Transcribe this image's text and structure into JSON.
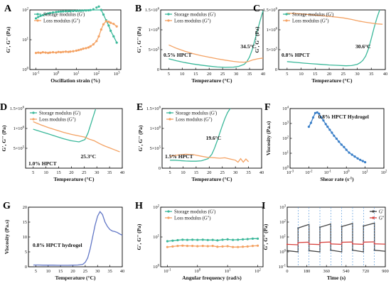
{
  "chart_data": [
    {
      "panel": "A",
      "type": "line",
      "log_x": true,
      "log_y": true,
      "xlim": [
        0.05,
        1600
      ],
      "ylim": [
        1,
        100
      ],
      "x_ticks": [
        "10-1",
        "100",
        "101",
        "102",
        "103"
      ],
      "y_ticks": [
        "100",
        "101",
        "102"
      ],
      "xlabel": "Oscillation strain (%)",
      "ylabel": "G', G'' (Pa)",
      "legend": [
        "Storage modulus (G')",
        "Loss modulus (G'')"
      ],
      "series": [
        {
          "name": "Storage modulus (G')",
          "color": "#3bb89a",
          "x": [
            0.1,
            0.13,
            0.17,
            0.22,
            0.3,
            0.4,
            0.5,
            0.7,
            1,
            1.3,
            1.7,
            2.2,
            3,
            4,
            5,
            7,
            10,
            13,
            17,
            22,
            30,
            40,
            50,
            70,
            100,
            130,
            170,
            220,
            300,
            400,
            500,
            700,
            1000
          ],
          "y": [
            52,
            58,
            63,
            67,
            72,
            76,
            79,
            82,
            85,
            87,
            88,
            89,
            90,
            91,
            91,
            92,
            93,
            94,
            94,
            95,
            96,
            97,
            99,
            105,
            120,
            130,
            100,
            70,
            45,
            30,
            20,
            13,
            8
          ]
        },
        {
          "name": "Loss modulus (G'')",
          "color": "#f4a263",
          "x": [
            0.1,
            0.13,
            0.17,
            0.22,
            0.3,
            0.4,
            0.5,
            0.7,
            1,
            1.3,
            1.7,
            2.2,
            3,
            4,
            5,
            7,
            10,
            13,
            17,
            22,
            30,
            40,
            50,
            70,
            100,
            130,
            170,
            220,
            300,
            400,
            500,
            700,
            1000
          ],
          "y": [
            3.6,
            3.7,
            3.6,
            3.8,
            3.7,
            3.6,
            3.7,
            3.8,
            3.7,
            3.9,
            3.8,
            3.9,
            4,
            3.9,
            4,
            4.1,
            4.3,
            4.5,
            4.7,
            5,
            5.2,
            5.5,
            6,
            7,
            9,
            13,
            22,
            33,
            42,
            40,
            37,
            34,
            28
          ]
        }
      ]
    },
    {
      "panel": "B",
      "type": "line",
      "xlim": [
        2,
        40
      ],
      "ylim": [
        0,
        1500000
      ],
      "x_ticks": [
        "5",
        "10",
        "15",
        "20",
        "25",
        "30",
        "35",
        "40"
      ],
      "y_ticks": [
        "0",
        "5×105",
        "1×106",
        "1.5×106"
      ],
      "xlabel": "Temperature (°C)",
      "ylabel": "G', G'' (Pa)",
      "legend": [
        "Storage modulus (G')",
        "Loss modulus (G'')"
      ],
      "annotations": [
        "0.5% HPCT",
        "34.5°C"
      ],
      "series": [
        {
          "name": "Storage modulus (G')",
          "color": "#3bb89a",
          "x": [
            5,
            8,
            11,
            14,
            17,
            20,
            23,
            26,
            29,
            31,
            33,
            34,
            35,
            36,
            37,
            38,
            39,
            40
          ],
          "y": [
            270000,
            220000,
            175000,
            140000,
            110000,
            85000,
            65000,
            55000,
            60000,
            80000,
            130000,
            200000,
            320000,
            500000,
            750000,
            1000000,
            1250000,
            1480000
          ]
        },
        {
          "name": "Loss modulus (G'')",
          "color": "#f4a263",
          "x": [
            5,
            8,
            11,
            14,
            17,
            20,
            23,
            26,
            29,
            31,
            33,
            34.5,
            36,
            38,
            40
          ],
          "y": [
            620000,
            530000,
            460000,
            400000,
            350000,
            310000,
            270000,
            235000,
            205000,
            190000,
            185000,
            200000,
            240000,
            270000,
            290000
          ]
        }
      ]
    },
    {
      "panel": "C",
      "type": "line",
      "xlim": [
        2,
        40
      ],
      "ylim": [
        0,
        1500000
      ],
      "x_ticks": [
        "5",
        "10",
        "15",
        "20",
        "25",
        "30",
        "35",
        "40"
      ],
      "y_ticks": [
        "0",
        "5×105",
        "1×106",
        "1.5×106"
      ],
      "xlabel": "Temperature (°C)",
      "ylabel": "G', G'' (Pa)",
      "legend": [
        "Storage modulus (G')",
        "Loss modulus (G'')"
      ],
      "annotations": [
        "0.8% HPCT",
        "30.6°C"
      ],
      "series": [
        {
          "name": "Storage modulus (G')",
          "color": "#3bb89a",
          "x": [
            5,
            8,
            11,
            14,
            17,
            20,
            23,
            26,
            28,
            30,
            31,
            32,
            33,
            34,
            35,
            36,
            37,
            38
          ],
          "y": [
            200000,
            180000,
            160000,
            145000,
            130000,
            115000,
            105000,
            95000,
            100000,
            130000,
            170000,
            230000,
            340000,
            520000,
            780000,
            1050000,
            1300000,
            1500000
          ]
        },
        {
          "name": "Loss modulus (G'')",
          "color": "#f4a263",
          "x": [
            5,
            10,
            15,
            20,
            25,
            28,
            30.6,
            33,
            35,
            37,
            39
          ],
          "y": [
            1420000,
            1400000,
            1370000,
            1340000,
            1300000,
            1260000,
            1220000,
            1190000,
            1170000,
            1150000,
            1140000
          ]
        }
      ]
    },
    {
      "panel": "D",
      "type": "line",
      "xlim": [
        2,
        40
      ],
      "ylim": [
        0,
        1500000
      ],
      "x_ticks": [
        "5",
        "10",
        "15",
        "20",
        "25",
        "30",
        "35",
        "40"
      ],
      "y_ticks": [
        "5×105",
        "1×106",
        "1.5×106"
      ],
      "xlabel": "Temperature (°C)",
      "ylabel": "G', G'' (Pa)",
      "legend": [
        "Storage modulus (G')",
        "Loss modulus (G'')"
      ],
      "annotations": [
        "1.0% HPCT",
        "25.3°C"
      ],
      "series": [
        {
          "name": "Storage modulus (G')",
          "color": "#3bb89a",
          "x": [
            5,
            8,
            11,
            14,
            17,
            20,
            23,
            25.3,
            26.5,
            27.5,
            28.5,
            29.5
          ],
          "y": [
            980000,
            920000,
            860000,
            800000,
            740000,
            690000,
            660000,
            720000,
            880000,
            1080000,
            1280000,
            1480000
          ]
        },
        {
          "name": "Loss modulus (G'')",
          "color": "#f4a263",
          "x": [
            5,
            8,
            11,
            14,
            17,
            20,
            23,
            25.3,
            27,
            29,
            31,
            33,
            35,
            37,
            39
          ],
          "y": [
            1170000,
            1090000,
            1020000,
            960000,
            900000,
            850000,
            810000,
            780000,
            730000,
            690000,
            620000,
            560000,
            510000,
            460000,
            410000
          ]
        }
      ]
    },
    {
      "panel": "E",
      "type": "line",
      "xlim": [
        2,
        40
      ],
      "ylim": [
        0,
        1500000
      ],
      "x_ticks": [
        "5",
        "10",
        "15",
        "20",
        "25",
        "30",
        "35",
        "40"
      ],
      "y_ticks": [
        "0",
        "5×105",
        "1×106",
        "1.5×106"
      ],
      "xlabel": "Temperature (°C)",
      "ylabel": "G', G'' (Pa)",
      "legend": [
        "Storage modulus (G')",
        "Loss modulus (G'')"
      ],
      "annotations": [
        "1.5% HPCT",
        "19.6°C"
      ],
      "series": [
        {
          "name": "Storage modulus (G')",
          "color": "#3bb89a",
          "x": [
            5,
            7,
            9,
            11,
            13,
            15,
            17,
            19.6,
            21,
            22,
            23,
            24,
            25,
            26,
            27,
            28
          ],
          "y": [
            200000,
            200000,
            190000,
            180000,
            175000,
            175000,
            185000,
            240000,
            350000,
            500000,
            680000,
            880000,
            1070000,
            1250000,
            1400000,
            1500000
          ]
        },
        {
          "name": "Loss modulus (G'')",
          "color": "#f4a263",
          "x": [
            5,
            8,
            11,
            14,
            17,
            19.6,
            22,
            24,
            26,
            28,
            30,
            31,
            32,
            33,
            34,
            35
          ],
          "y": [
            300000,
            330000,
            350000,
            340000,
            300000,
            270000,
            260000,
            250000,
            260000,
            230000,
            200000,
            150000,
            240000,
            150000,
            230000,
            160000
          ]
        }
      ]
    },
    {
      "panel": "F",
      "type": "line",
      "log_x": true,
      "log_y": true,
      "xlim": [
        0.001,
        100
      ],
      "ylim": [
        1,
        10000
      ],
      "x_ticks": [
        "10-3",
        "10-2",
        "10-1",
        "100",
        "101",
        "102"
      ],
      "y_ticks": [
        "100",
        "101",
        "102",
        "103",
        "104"
      ],
      "xlabel": "Shear rate (s-1)",
      "ylabel": "Viscosity (Pa.s)",
      "annotations": [
        "0.8% HPCT Hydrogel"
      ],
      "series": [
        {
          "name": "",
          "color": "#3a7fc8",
          "x": [
            0.01,
            0.013,
            0.017,
            0.022,
            0.028,
            0.035,
            0.045,
            0.06,
            0.08,
            0.1,
            0.13,
            0.17,
            0.22,
            0.3,
            0.4,
            0.55,
            0.75,
            1,
            1.4,
            2,
            2.8,
            4,
            5.5,
            7.5,
            10
          ],
          "y": [
            600,
            1100,
            2500,
            5000,
            5500,
            4500,
            2600,
            1600,
            900,
            600,
            380,
            240,
            150,
            95,
            60,
            38,
            26,
            17,
            11,
            8,
            6,
            4.5,
            3.6,
            3,
            2.5
          ]
        }
      ]
    },
    {
      "panel": "G",
      "type": "line",
      "xlim": [
        2,
        40
      ],
      "ylim": [
        0,
        20
      ],
      "x_ticks": [
        "5",
        "10",
        "15",
        "20",
        "25",
        "30",
        "35",
        "40"
      ],
      "y_ticks": [
        "0",
        "5",
        "10",
        "15",
        "20"
      ],
      "xlabel": "Temperature (°C)",
      "ylabel": "Viscosity (Pa.s)",
      "annotations": [
        "0.8% HPCT hydrogel"
      ],
      "series": [
        {
          "name": "",
          "color": "#6277c6",
          "x": [
            4,
            6,
            8,
            10,
            12,
            14,
            16,
            18,
            20,
            22,
            24,
            25,
            26,
            27,
            28,
            29,
            30,
            31,
            32,
            33,
            34,
            35,
            36,
            37,
            38,
            39,
            40
          ],
          "y": [
            0.6,
            0.6,
            0.55,
            0.55,
            0.55,
            0.5,
            0.5,
            0.5,
            0.55,
            0.6,
            0.8,
            1.5,
            3,
            6,
            10,
            14,
            17,
            18.5,
            17.5,
            15,
            13.5,
            12.5,
            12,
            11.8,
            11.5,
            11,
            10.6
          ]
        }
      ]
    },
    {
      "panel": "H",
      "type": "line",
      "log_x": true,
      "log_y": true,
      "xlim": [
        0.06,
        150
      ],
      "ylim": [
        1,
        100
      ],
      "x_ticks": [
        "10-1",
        "100",
        "101",
        "102"
      ],
      "y_ticks": [
        "100",
        "101",
        "102"
      ],
      "xlabel": "Angular frequency (rad/s)",
      "ylabel": "G', G'' (Pa)",
      "legend": [
        "Storage modulus (G')",
        "Loss modulus (G'')"
      ],
      "series": [
        {
          "name": "Storage modulus (G')",
          "color": "#3bb89a",
          "x": [
            0.1,
            0.15,
            0.22,
            0.32,
            0.46,
            0.68,
            1,
            1.5,
            2.2,
            3.2,
            4.6,
            6.8,
            10,
            15,
            22,
            32,
            46,
            68,
            100
          ],
          "y": [
            7.2,
            7.5,
            7.8,
            8.1,
            8,
            8.1,
            8,
            8.1,
            7.9,
            8,
            7.7,
            8.1,
            8.3,
            8,
            8.1,
            8.3,
            8.5,
            8.8,
            8.8
          ]
        },
        {
          "name": "Loss modulus (G'')",
          "color": "#f4a263",
          "x": [
            0.1,
            0.15,
            0.22,
            0.32,
            0.46,
            0.68,
            1,
            1.5,
            2.2,
            3.2,
            4.6,
            6.8,
            10,
            15,
            22,
            32,
            46,
            68,
            100
          ],
          "y": [
            4.6,
            4.8,
            5,
            5.1,
            5,
            5,
            4.9,
            5,
            4.9,
            5,
            4.7,
            4.8,
            4.9,
            4.6,
            4.6,
            4.7,
            4.8,
            5,
            5.1
          ]
        }
      ]
    },
    {
      "panel": "I",
      "type": "line",
      "log_y": true,
      "xlim": [
        0,
        900
      ],
      "ylim": [
        0.1,
        1000
      ],
      "x_ticks": [
        "0",
        "180",
        "360",
        "540",
        "720",
        "900"
      ],
      "y_ticks": [
        "10-1",
        "100",
        "101",
        "102",
        "103"
      ],
      "xlabel": "Time (s)",
      "ylabel": "G', G'' (Pa)",
      "legend": [
        "G'",
        "G''"
      ],
      "series": [
        {
          "name": "G'",
          "color": "#444444",
          "x": [
            0,
            100,
            100.1,
            200,
            200.1,
            300,
            300.1,
            400,
            400.1,
            500,
            500.1,
            600,
            600.1,
            700,
            700.1,
            800,
            800.1,
            900
          ],
          "y": [
            1.2,
            1.0,
            40,
            70,
            1.2,
            1.0,
            45,
            75,
            1.3,
            1.0,
            50,
            80,
            1.3,
            1.0,
            55,
            85,
            1.3,
            1.1
          ]
        },
        {
          "name": "G''",
          "color": "#d9423d",
          "x": [
            0,
            100,
            100.1,
            200,
            200.1,
            300,
            300.1,
            400,
            400.1,
            500,
            500.1,
            600,
            600.1,
            700,
            700.1,
            800,
            800.1,
            900
          ],
          "y": [
            3.2,
            3.0,
            4.2,
            4.5,
            3.3,
            3.1,
            4.3,
            4.6,
            3.4,
            3.2,
            4.4,
            4.6,
            3.4,
            3.2,
            4.5,
            4.7,
            3.5,
            3.3
          ]
        }
      ]
    }
  ]
}
